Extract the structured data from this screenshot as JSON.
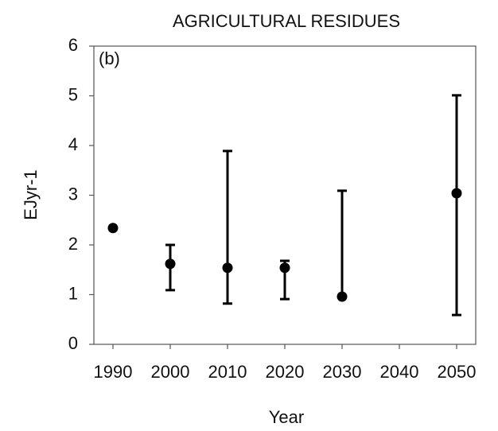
{
  "chart_data": {
    "type": "errorbar",
    "title": "AGRICULTURAL RESIDUES",
    "panel_label": "(b)",
    "x_label": "Year",
    "y_label": "EJyr-1",
    "categories": [
      "1990",
      "2000",
      "2010",
      "2020",
      "2030",
      "2040",
      "2050"
    ],
    "values": [
      2.34,
      1.62,
      1.54,
      1.54,
      0.96,
      null,
      3.04
    ],
    "lower": [
      null,
      1.09,
      0.82,
      0.91,
      0.96,
      null,
      0.59
    ],
    "upper": [
      null,
      2.0,
      3.89,
      1.68,
      3.09,
      null,
      5.01
    ],
    "color": "#000000",
    "ylim": [
      0,
      6
    ],
    "yticks": [
      0,
      1,
      2,
      3,
      4,
      5,
      6
    ],
    "grid": false
  }
}
